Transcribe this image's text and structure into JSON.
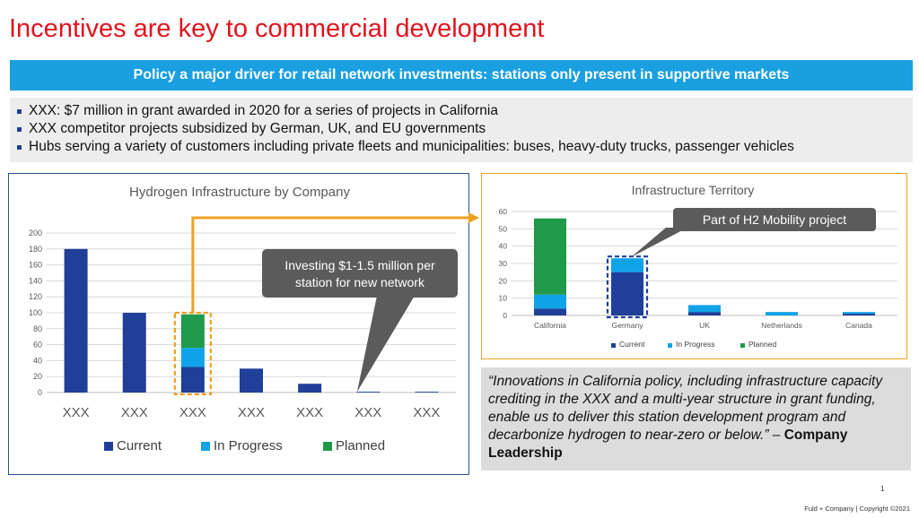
{
  "title": "Incentives are key to commercial development",
  "banner": "Policy a major driver for retail network investments: stations only present in supportive markets",
  "bullets": [
    "XXX: $7 million in grant awarded in 2020 for a series of projects in California",
    "XXX competitor projects subsidized by German, UK, and EU governments",
    "Hubs serving a variety of customers including private fleets and municipalities: buses, heavy-duty trucks, passenger vehicles"
  ],
  "colors": {
    "current": "#1f3f99",
    "in_progress": "#11a3e8",
    "planned": "#1f9a4a",
    "title_red": "#e0141e",
    "banner_blue": "#1a9fe0",
    "highlight": "#f0a020",
    "callout": "#5b5b5b"
  },
  "chart_data": [
    {
      "type": "bar",
      "stacked": true,
      "title": "Hydrogen Infrastructure by Company",
      "categories": [
        "XXX",
        "XXX",
        "XXX",
        "XXX",
        "XXX",
        "XXX",
        "XXX"
      ],
      "series": [
        {
          "name": "Current",
          "values": [
            180,
            100,
            32,
            30,
            11,
            1,
            1
          ]
        },
        {
          "name": "In Progress",
          "values": [
            0,
            0,
            24,
            0,
            0,
            0,
            0
          ]
        },
        {
          "name": "Planned",
          "values": [
            0,
            0,
            42,
            0,
            0,
            0,
            0
          ]
        }
      ],
      "ylim": [
        0,
        200
      ],
      "yticks": [
        0,
        20,
        40,
        60,
        80,
        100,
        120,
        140,
        160,
        180,
        200
      ],
      "grid": true,
      "legend": "bottom",
      "annotation": "Investing $1-1.5 million per station for new network"
    },
    {
      "type": "bar",
      "stacked": true,
      "title": "Infrastructure Territory",
      "categories": [
        "California",
        "Germany",
        "UK",
        "Netherlands",
        "Canada"
      ],
      "series": [
        {
          "name": "Current",
          "values": [
            4,
            25,
            2,
            0,
            1
          ]
        },
        {
          "name": "In Progress",
          "values": [
            8,
            8,
            4,
            2,
            1
          ]
        },
        {
          "name": "Planned",
          "values": [
            44,
            0,
            0,
            0,
            0
          ]
        }
      ],
      "ylim": [
        0,
        60
      ],
      "yticks": [
        0,
        10,
        20,
        30,
        40,
        50,
        60
      ],
      "grid": true,
      "legend": "bottom",
      "annotation": "Part of H2 Mobility project"
    }
  ],
  "quote": {
    "text": "“Innovations in California policy, including infrastructure capacity crediting in the XXX and a multi-year structure in grant funding, enable us to deliver this station development program and decarbonize hydrogen to near-zero or below.” –",
    "attribution": "Company Leadership"
  },
  "page_number": "1",
  "footer": "Fuld + Company | Copyright ©2021"
}
